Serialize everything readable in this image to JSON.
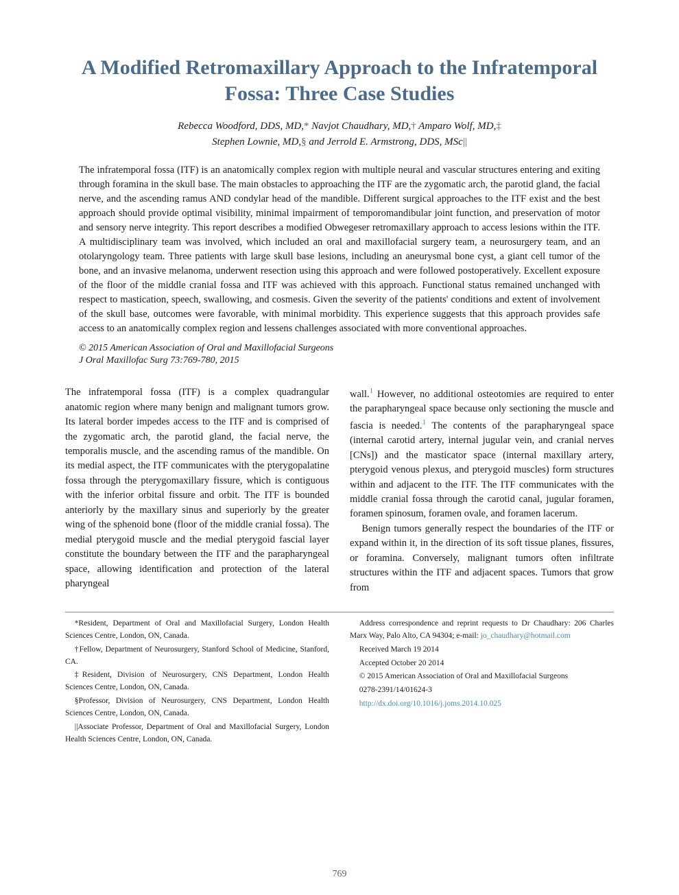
{
  "title": "A Modified Retromaxillary Approach to the Infratemporal Fossa: Three Case Studies",
  "authors_line1": "Rebecca Woodford, DDS, MD,* Navjot Chaudhary, MD,† Amparo Wolf, MD,‡",
  "authors_line2": "Stephen Lownie, MD,§ and Jerrold E. Armstrong, DDS, MSc||",
  "marks": {
    "a": "*",
    "b": "†",
    "c": "‡",
    "d": "§",
    "e": "||"
  },
  "abstract": "The infratemporal fossa (ITF) is an anatomically complex region with multiple neural and vascular structures entering and exiting through foramina in the skull base. The main obstacles to approaching the ITF are the zygomatic arch, the parotid gland, the facial nerve, and the ascending ramus AND condylar head of the mandible. Different surgical approaches to the ITF exist and the best approach should provide optimal visibility, minimal impairment of temporomandibular joint function, and preservation of motor and sensory nerve integrity. This report describes a modified Obwegeser retromaxillary approach to access lesions within the ITF. A multidisciplinary team was involved, which included an oral and maxillofacial surgery team, a neurosurgery team, and an otolaryngology team. Three patients with large skull base lesions, including an aneurysmal bone cyst, a giant cell tumor of the bone, and an invasive melanoma, underwent resection using this approach and were followed postoperatively. Excellent exposure of the floor of the middle cranial fossa and ITF was achieved with this approach. Functional status remained unchanged with respect to mastication, speech, swallowing, and cosmesis. Given the severity of the patients' conditions and extent of involvement of the skull base, outcomes were favorable, with minimal morbidity. This experience suggests that this approach provides safe access to an anatomically complex region and lessens challenges associated with more conventional approaches.",
  "copyright": "© 2015 American Association of Oral and Maxillofacial Surgeons",
  "citation": "J Oral Maxillofac Surg 73:769-780, 2015",
  "body": {
    "col1_p1": "The infratemporal fossa (ITF) is a complex quadrangular anatomic region where many benign and malignant tumors grow. Its lateral border impedes access to the ITF and is comprised of the zygomatic arch, the parotid gland, the facial nerve, the temporalis muscle, and the ascending ramus of the mandible. On its medial aspect, the ITF communicates with the pterygopalatine fossa through the pterygomaxillary fissure, which is contiguous with the inferior orbital fissure and orbit. The ITF is bounded anteriorly by the maxillary sinus and superiorly by the greater wing of the sphenoid bone (floor of the middle cranial fossa). The medial pterygoid muscle and the medial pterygoid fascial layer constitute the boundary between the ITF and the parapharyngeal space, allowing identification and protection of the lateral pharyngeal",
    "col2_p1a": "wall.",
    "col2_p1b": " However, no additional osteotomies are required to enter the parapharyngeal space because only sectioning the muscle and fascia is needed.",
    "col2_p1c": " The contents of the parapharyngeal space (internal carotid artery, internal jugular vein, and cranial nerves [CNs]) and the masticator space (internal maxillary artery, pterygoid venous plexus, and pterygoid muscles) form structures within and adjacent to the ITF. The ITF communicates with the middle cranial fossa through the carotid canal, jugular foramen, foramen spinosum, foramen ovale, and foramen lacerum.",
    "col2_p2": "Benign tumors generally respect the boundaries of the ITF or expand within it, in the direction of its soft tissue planes, fissures, or foramina. Conversely, malignant tumors often infiltrate structures within the ITF and adjacent spaces. Tumors that grow from",
    "ref1": "1"
  },
  "footnotes": {
    "left": [
      "*Resident, Department of Oral and Maxillofacial Surgery, London Health Sciences Centre, London, ON, Canada.",
      "†Fellow, Department of Neurosurgery, Stanford School of Medicine, Stanford, CA.",
      "‡Resident, Division of Neurosurgery, CNS Department, London Health Sciences Centre, London, ON, Canada.",
      "§Professor, Division of Neurosurgery, CNS Department, London Health Sciences Centre, London, ON, Canada.",
      "||Associate Professor, Department of Oral and Maxillofacial Surgery, London Health Sciences Centre, London, ON, Canada."
    ],
    "right_addr_a": "Address correspondence and reprint requests to Dr Chaudhary: 206 Charles Marx Way, Palo Alto, CA 94304; e-mail: ",
    "right_email": "jo_chaudhary@hotmail.com",
    "right_received": "Received March 19 2014",
    "right_accepted": "Accepted October 20 2014",
    "right_cc": "© 2015 American Association of Oral and Maxillofacial Surgeons",
    "right_issn": "0278-2391/14/01624-3",
    "right_doi": "http://dx.doi.org/10.1016/j.joms.2014.10.025"
  },
  "page_number": "769",
  "colors": {
    "title_color": "#4a6b8a",
    "link_color": "#4a8ab8",
    "text_color": "#1a1a1a",
    "background": "#ffffff"
  },
  "typography": {
    "title_fontsize": 30,
    "author_fontsize": 15,
    "abstract_fontsize": 14.5,
    "body_fontsize": 14.5,
    "footnote_fontsize": 11.5
  }
}
